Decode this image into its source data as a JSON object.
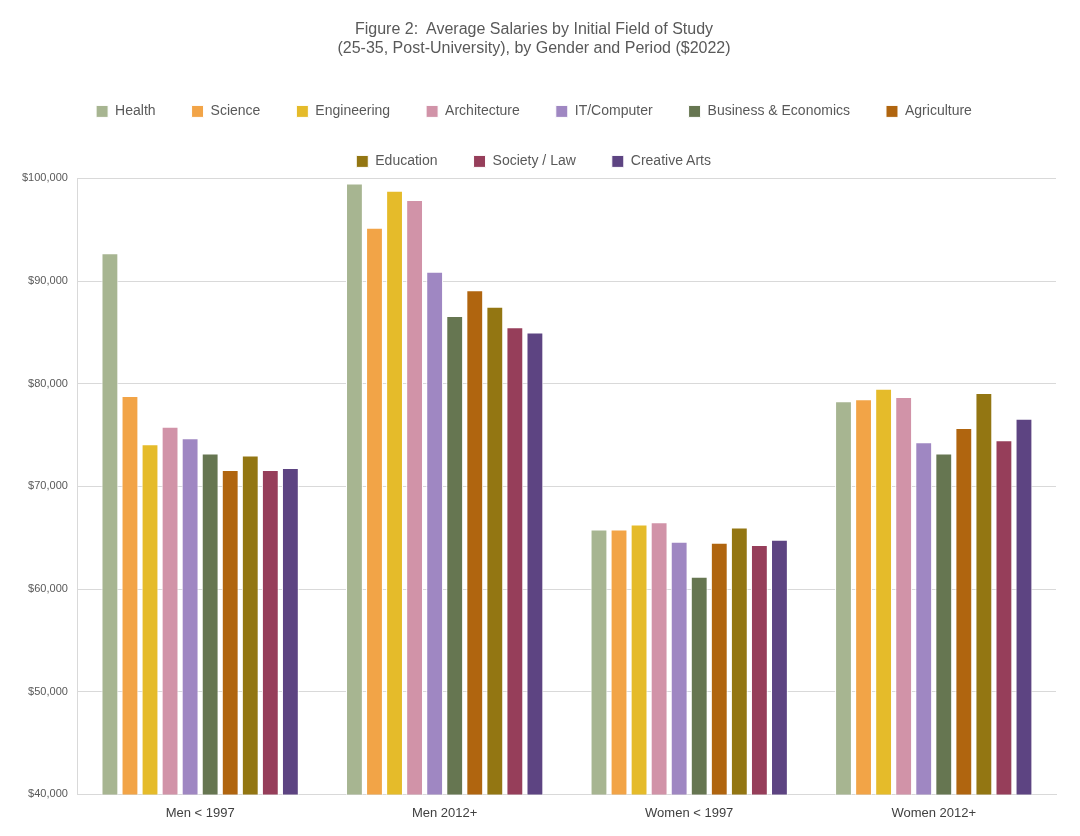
{
  "chart_data": {
    "type": "bar",
    "title": "Figure 2:  Average Salaries by Initial Field of Study\n(25-35, Post-University), by Gender and Period ($2022)",
    "categories": [
      "Men < 1997",
      "Men 2012+",
      "Women < 1997",
      "Women 2012+"
    ],
    "series": [
      {
        "name": "Health",
        "color": "#a7b591",
        "values": [
          92700,
          99500,
          65800,
          78300
        ]
      },
      {
        "name": "Science",
        "color": "#f2a447",
        "values": [
          78800,
          95200,
          65800,
          78500
        ]
      },
      {
        "name": "Engineering",
        "color": "#e5bb2a",
        "values": [
          74100,
          98800,
          66300,
          79500
        ]
      },
      {
        "name": "Architecture",
        "color": "#d193a8",
        "values": [
          75800,
          97900,
          66500,
          78700
        ]
      },
      {
        "name": "IT/Computer",
        "color": "#9f87c2",
        "values": [
          74700,
          90900,
          64600,
          74300
        ]
      },
      {
        "name": "Business & Economics",
        "color": "#667651",
        "values": [
          73200,
          86600,
          61200,
          73200
        ]
      },
      {
        "name": "Agriculture",
        "color": "#b0650f",
        "values": [
          71600,
          89100,
          64500,
          75700
        ]
      },
      {
        "name": "Education",
        "color": "#937612",
        "values": [
          73000,
          87500,
          66000,
          79100
        ]
      },
      {
        "name": "Society / Law",
        "color": "#963e5a",
        "values": [
          71600,
          85500,
          64300,
          74500
        ]
      },
      {
        "name": "Creative Arts",
        "color": "#5d4482",
        "values": [
          71800,
          85000,
          64800,
          76600
        ]
      }
    ],
    "ylim": [
      40000,
      100000
    ],
    "yticks": [
      {
        "value": 40000,
        "label": "$40,000"
      },
      {
        "value": 50000,
        "label": "$50,000"
      },
      {
        "value": 60000,
        "label": "$60,000"
      },
      {
        "value": 70000,
        "label": "$70,000"
      },
      {
        "value": 80000,
        "label": "$80,000"
      },
      {
        "value": 90000,
        "label": "$90,000"
      },
      {
        "value": 100000,
        "label": "$100,000"
      }
    ],
    "grid": "y",
    "legend": "top"
  }
}
